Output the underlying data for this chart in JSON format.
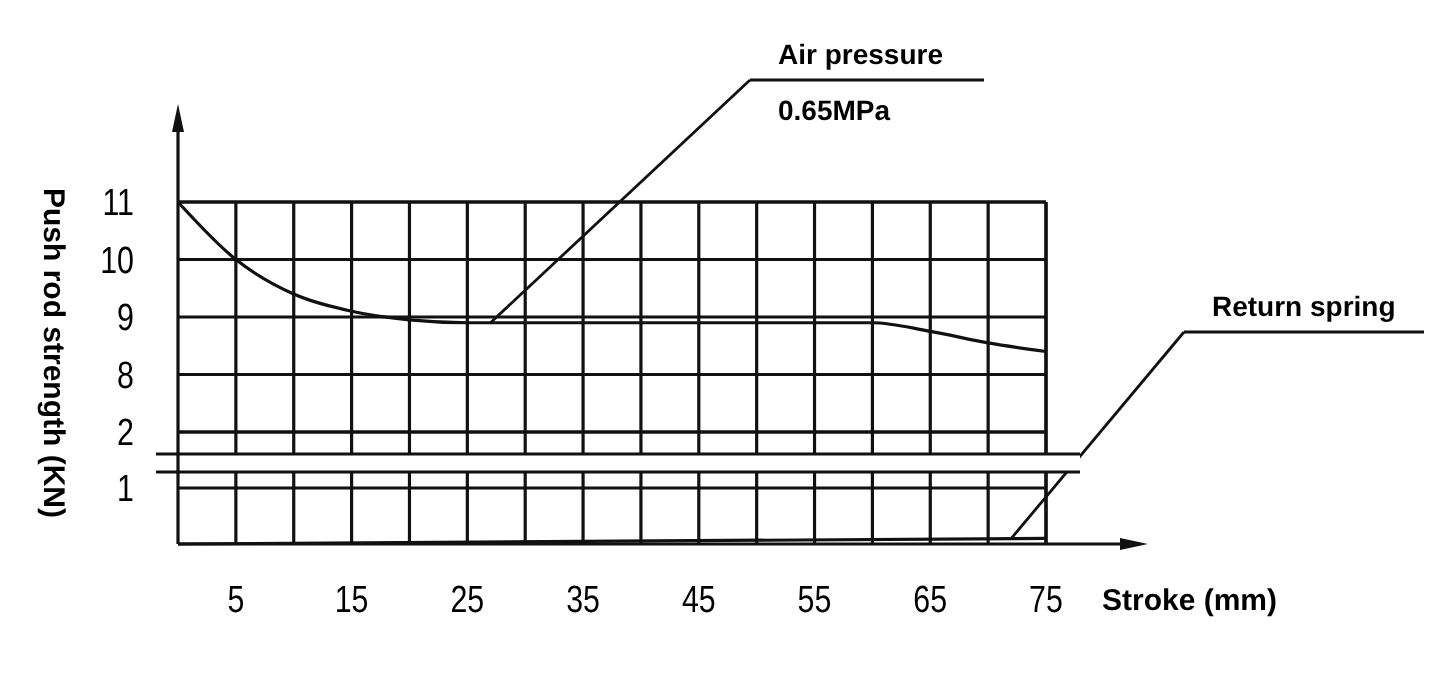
{
  "chart_data": [
    {
      "type": "line",
      "ylabel": "Push rod strength (KN)",
      "xlim": [
        0,
        75
      ],
      "xticks": [
        5,
        {
          "value": 10,
          "label": null
        },
        15,
        {
          "value": 20,
          "label": null
        },
        25,
        {
          "value": 30,
          "label": null
        },
        35,
        {
          "value": 40,
          "label": null
        },
        45,
        {
          "value": 50,
          "label": null
        },
        55,
        {
          "value": 60,
          "label": null
        },
        65,
        {
          "value": 70,
          "label": null
        },
        75
      ],
      "ylim": [
        7,
        11
      ],
      "yticks": [
        8,
        9,
        10,
        11
      ],
      "grid": true,
      "tick_labels": "y",
      "marker": "none",
      "line_style": "solid",
      "series": [
        {
          "color": "#111111",
          "x": [
            0,
            5,
            10,
            15,
            20,
            25,
            30,
            35,
            40,
            45,
            50,
            55,
            60,
            65,
            70,
            75
          ],
          "values": [
            11,
            10,
            9.4,
            9.1,
            8.95,
            8.9,
            8.9,
            8.9,
            8.9,
            8.9,
            8.9,
            8.9,
            8.9,
            8.75,
            8.55,
            8.4
          ]
        }
      ],
      "annotations": [
        {
          "text": "Air pressure\n0.65MPa",
          "x": 27,
          "y": 8.9
        }
      ]
    },
    {
      "type": "line",
      "xlabel": "Stroke (mm)",
      "xlim": [
        0,
        75
      ],
      "xticks": [
        5,
        {
          "value": 10,
          "label": null
        },
        15,
        {
          "value": 20,
          "label": null
        },
        25,
        {
          "value": 30,
          "label": null
        },
        35,
        {
          "value": 40,
          "label": null
        },
        45,
        {
          "value": 50,
          "label": null
        },
        55,
        {
          "value": 60,
          "label": null
        },
        65,
        {
          "value": 70,
          "label": null
        },
        75
      ],
      "ylim": [
        0,
        2
      ],
      "yticks": [
        1,
        2
      ],
      "grid": true,
      "marker": "none",
      "line_style": "solid",
      "series": [
        {
          "color": "#111111",
          "x": [
            0,
            75
          ],
          "values": [
            0,
            0.1
          ]
        }
      ],
      "annotations": [
        {
          "text": "Return spring",
          "x": 72,
          "y": 0.1
        }
      ]
    }
  ]
}
